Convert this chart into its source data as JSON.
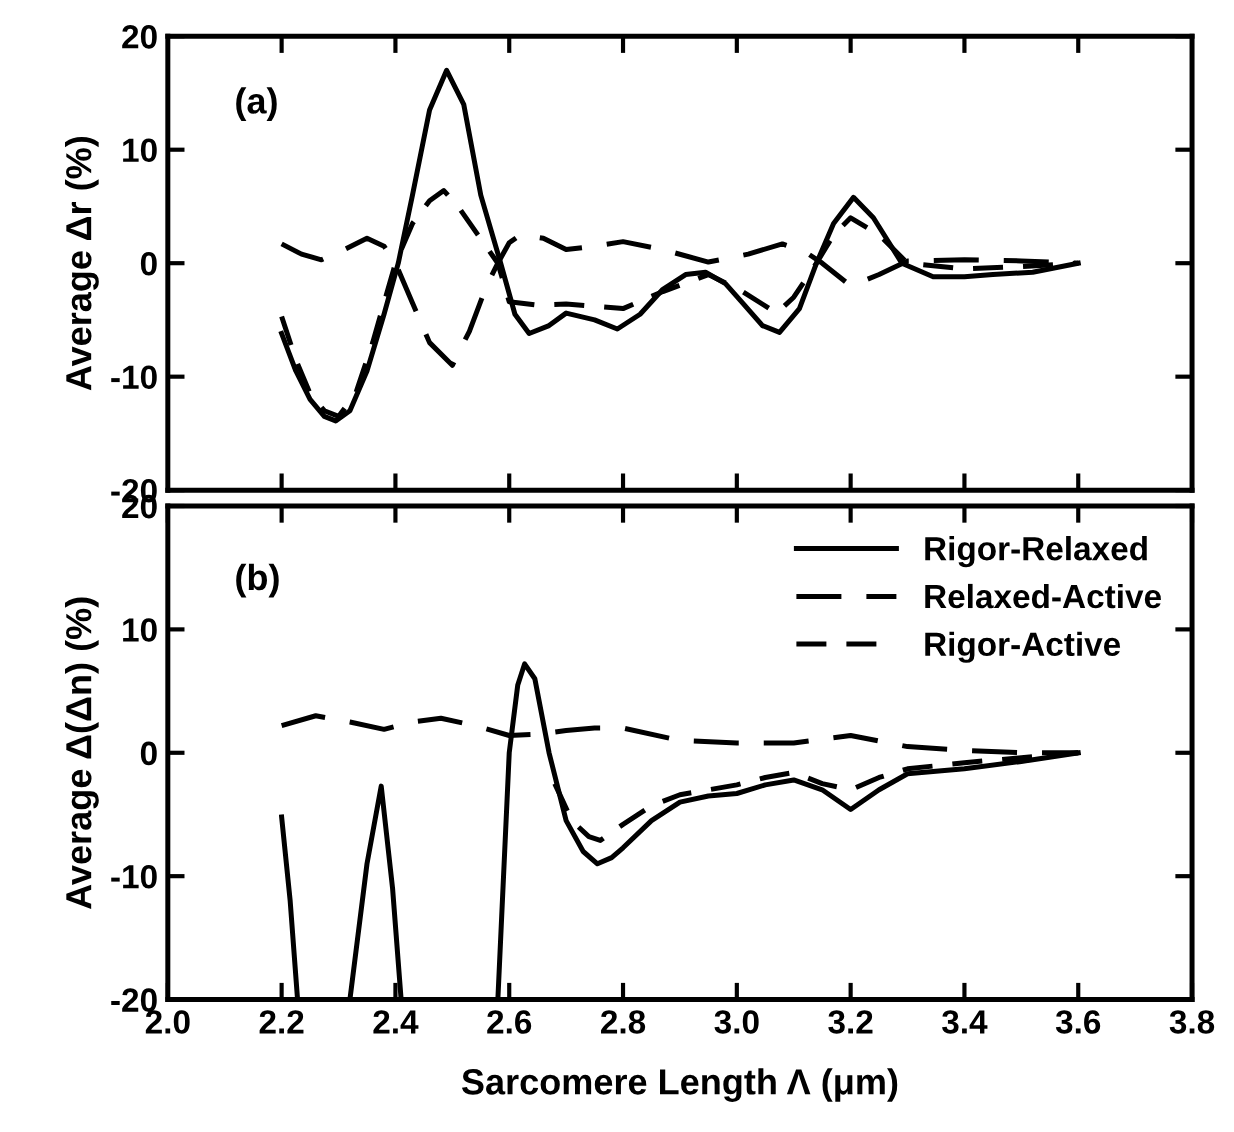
{
  "chart_data": [
    {
      "type": "line",
      "ylabel": "Average Δr (%)",
      "annotations": [
        "(a)"
      ],
      "xlim": [
        2.0,
        3.8
      ],
      "xticks": [
        2.2,
        2.4,
        2.6,
        2.8,
        3.0,
        3.2,
        3.4,
        3.6
      ],
      "ylim": [
        -20,
        20
      ],
      "yticks": [
        -20,
        -10,
        0,
        10,
        20
      ],
      "tick_labels": "y",
      "legend": false,
      "grid": false,
      "series": [
        {
          "color": "#000000",
          "line_style": "solid",
          "x": [
            2.2,
            2.225,
            2.25,
            2.275,
            2.295,
            2.32,
            2.35,
            2.38,
            2.405,
            2.43,
            2.46,
            2.49,
            2.52,
            2.55,
            2.585,
            2.61,
            2.635,
            2.67,
            2.7,
            2.75,
            2.79,
            2.83,
            2.87,
            2.91,
            2.945,
            2.98,
            3.01,
            3.045,
            3.075,
            3.11,
            3.14,
            3.17,
            3.205,
            3.24,
            3.29,
            3.345,
            3.4,
            3.45,
            3.52,
            3.6
          ],
          "values": [
            -6.2,
            -9.5,
            -12,
            -13.5,
            -13.9,
            -13,
            -9.5,
            -4.5,
            0,
            6,
            13.5,
            17,
            14,
            6,
            0,
            -4.5,
            -6.2,
            -5.5,
            -4.4,
            -5,
            -5.8,
            -4.5,
            -2.3,
            -1,
            -0.8,
            -1.8,
            -3.5,
            -5.5,
            -6.1,
            -4,
            0,
            3.5,
            5.8,
            4,
            0,
            -1.2,
            -1.2,
            -1,
            -0.8,
            0
          ]
        },
        {
          "color": "#000000",
          "line_style": "dashed",
          "x": [
            2.2,
            2.235,
            2.27,
            2.31,
            2.35,
            2.38,
            2.4,
            2.43,
            2.46,
            2.5,
            2.53,
            2.56,
            2.58,
            2.6,
            2.62,
            2.66,
            2.7,
            2.75,
            2.8,
            2.87,
            2.95,
            3.02,
            3.08,
            3.12,
            3.15,
            3.2,
            3.25,
            3.3,
            3.4,
            3.5,
            3.6
          ],
          "values": [
            1.7,
            0.8,
            0.3,
            1.2,
            2.2,
            1.5,
            0,
            -3.5,
            -7,
            -9,
            -6,
            -2,
            0,
            1.8,
            2.5,
            2.2,
            1.2,
            1.5,
            1.9,
            1.2,
            0.1,
            0.8,
            1.7,
            1.0,
            0,
            -2,
            -1,
            0.2,
            0.3,
            0.2,
            0
          ]
        },
        {
          "color": "#000000",
          "line_style": "dashed",
          "x": [
            2.2,
            2.225,
            2.25,
            2.275,
            2.3,
            2.33,
            2.36,
            2.4,
            2.43,
            2.46,
            2.485,
            2.51,
            2.545,
            2.58,
            2.6,
            2.65,
            2.7,
            2.75,
            2.8,
            2.87,
            2.95,
            3.01,
            3.07,
            3.1,
            3.14,
            3.17,
            3.2,
            3.25,
            3.3,
            3.4,
            3.5,
            3.6
          ],
          "values": [
            -4.7,
            -8.5,
            -11.5,
            -13,
            -13.5,
            -11.5,
            -7,
            0,
            3.5,
            5.5,
            6.4,
            5,
            2.5,
            0,
            -3.4,
            -3.7,
            -3.6,
            -3.8,
            -4,
            -2.5,
            -1,
            -2.5,
            -4.4,
            -3,
            0,
            2.5,
            4,
            2.5,
            0,
            -0.5,
            -0.3,
            0
          ]
        }
      ]
    },
    {
      "type": "line",
      "ylabel": "Average Δ(Δn) (%)",
      "xlabel": "Sarcomere Length Λ (μm)",
      "annotations": [
        "(b)"
      ],
      "xlim": [
        2.0,
        3.8
      ],
      "xticks": [
        {
          "value": 2.0,
          "label": "2.0"
        },
        2.2,
        2.4,
        2.6,
        2.8,
        {
          "value": 3.0,
          "label": "3.0"
        },
        3.2,
        3.4,
        3.6,
        3.8
      ],
      "ylim": [
        -20,
        20
      ],
      "yticks": [
        -20,
        -10,
        0,
        10,
        20
      ],
      "legend": "top right",
      "grid": false,
      "series": [
        {
          "name": "Rigor-Relaxed",
          "color": "#000000",
          "line_style": "solid",
          "x": [
            2.2,
            2.215,
            2.228,
            2.24,
            2.32,
            2.35,
            2.375,
            2.395,
            2.41,
            2.5,
            2.58,
            2.6,
            2.615,
            2.627,
            2.645,
            2.67,
            2.7,
            2.73,
            2.755,
            2.78,
            2.8,
            2.85,
            2.9,
            2.95,
            3.0,
            3.05,
            3.1,
            3.15,
            3.2,
            3.25,
            3.3,
            3.4,
            3.5,
            3.6
          ],
          "values": [
            -5.2,
            -12,
            -20,
            null,
            -20,
            -9,
            -2.7,
            -11,
            -20,
            null,
            -20,
            0,
            5.5,
            7.2,
            6,
            0,
            -5.5,
            -8,
            -9,
            -8.5,
            -7.7,
            -5.5,
            -4,
            -3.5,
            -3.3,
            -2.6,
            -2.2,
            -3,
            -4.6,
            -3,
            -1.7,
            -1.3,
            -0.7,
            0
          ]
        },
        {
          "name": "Relaxed-Active",
          "color": "#000000",
          "line_style": "dashed",
          "x": [
            2.2,
            2.26,
            2.32,
            2.38,
            2.43,
            2.48,
            2.54,
            2.6,
            2.65,
            2.7,
            2.75,
            2.8,
            2.9,
            3.0,
            3.1,
            3.2,
            3.3,
            3.4,
            3.5,
            3.6
          ],
          "values": [
            2.2,
            3.0,
            2.5,
            1.9,
            2.5,
            2.8,
            2.2,
            1.4,
            1.5,
            1.8,
            2.0,
            2.0,
            1.0,
            0.8,
            0.8,
            1.4,
            0.5,
            0.2,
            0,
            0
          ]
        },
        {
          "name": "Rigor-Active",
          "color": "#000000",
          "line_style": "dashed",
          "x": [
            2.68,
            2.71,
            2.74,
            2.76,
            2.8,
            2.85,
            2.9,
            2.95,
            3.0,
            3.05,
            3.1,
            3.15,
            3.2,
            3.25,
            3.3,
            3.4,
            3.5,
            3.6
          ],
          "values": [
            -2.5,
            -5.5,
            -6.8,
            -7.1,
            -5.8,
            -4.3,
            -3.4,
            -3,
            -2.6,
            -2,
            -1.6,
            -2.5,
            -3.0,
            -2,
            -1.3,
            -0.8,
            -0.4,
            0
          ]
        }
      ]
    }
  ]
}
